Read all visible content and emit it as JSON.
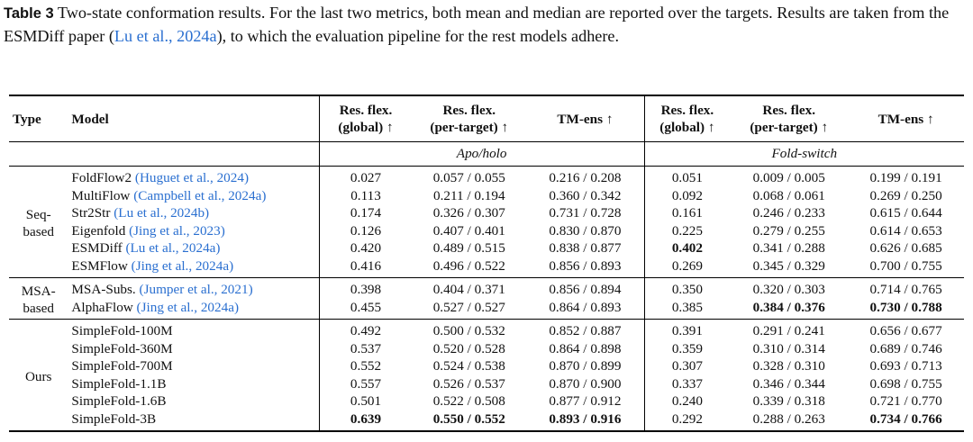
{
  "caption": {
    "label": "Table 3",
    "text_1": " Two-state conformation results. For the last two metrics, both mean and median are reported over the targets. Results are taken from the ESMDiff paper (",
    "cite_author": "Lu et al.",
    "cite_sep": ", ",
    "cite_year": "2024a",
    "text_2": "), to which the evaluation pipeline for the rest models adhere."
  },
  "headers": {
    "type": "Type",
    "model": "Model",
    "global_1": "Res. flex.",
    "global_2": "(global) ↑",
    "pert_1": "Res. flex.",
    "pert_2": "(per-target) ↑",
    "tm": "TM-ens ↑",
    "group_a": "Apo/holo",
    "group_b": "Fold-switch"
  },
  "groups": [
    {
      "type_1": "Seq-",
      "type_2": "based",
      "rows": [
        {
          "name": "FoldFlow2 ",
          "cite": "(Huguet et al., 2024)",
          "a_g": "0.027",
          "a_p": "0.057 / 0.055",
          "a_t": "0.216 / 0.208",
          "b_g": "0.051",
          "b_p": "0.009 / 0.005",
          "b_t": "0.199 / 0.191"
        },
        {
          "name": "MultiFlow ",
          "cite": "(Campbell et al., 2024a)",
          "a_g": "0.113",
          "a_p": "0.211 / 0.194",
          "a_t": "0.360 / 0.342",
          "b_g": "0.092",
          "b_p": "0.068 / 0.061",
          "b_t": "0.269 / 0.250"
        },
        {
          "name": "Str2Str ",
          "cite": "(Lu et al., 2024b)",
          "a_g": "0.174",
          "a_p": "0.326 / 0.307",
          "a_t": "0.731 / 0.728",
          "b_g": "0.161",
          "b_p": "0.246 / 0.233",
          "b_t": "0.615 / 0.644"
        },
        {
          "name": "Eigenfold ",
          "cite": "(Jing et al., 2023)",
          "a_g": "0.126",
          "a_p": "0.407 / 0.401",
          "a_t": "0.830 / 0.870",
          "b_g": "0.225",
          "b_p": "0.279 / 0.255",
          "b_t": "0.614 / 0.653"
        },
        {
          "name": "ESMDiff ",
          "cite": "(Lu et al., 2024a)",
          "a_g": "0.420",
          "a_p": "0.489 / 0.515",
          "a_t": "0.838 / 0.877",
          "b_g": "0.402",
          "b_p": "0.341 / 0.288",
          "b_t": "0.626 / 0.685"
        },
        {
          "name": "ESMFlow ",
          "cite": "(Jing et al., 2024a)",
          "a_g": "0.416",
          "a_p": "0.496 / 0.522",
          "a_t": "0.856 / 0.893",
          "b_g": "0.269",
          "b_p": "0.345 / 0.329",
          "b_t": "0.700 / 0.755"
        }
      ]
    },
    {
      "type_1": "MSA-",
      "type_2": "based",
      "rows": [
        {
          "name": "MSA-Subs. ",
          "cite": "(Jumper et al., 2021)",
          "a_g": "0.398",
          "a_p": "0.404 / 0.371",
          "a_t": "0.856 / 0.894",
          "b_g": "0.350",
          "b_p": "0.320 / 0.303",
          "b_t": "0.714 / 0.765"
        },
        {
          "name": "AlphaFlow ",
          "cite": "(Jing et al., 2024a)",
          "a_g": "0.455",
          "a_p": "0.527 / 0.527",
          "a_t": "0.864 / 0.893",
          "b_g": "0.385",
          "b_p": "0.384 / 0.376",
          "b_t": "0.730 / 0.788"
        }
      ]
    },
    {
      "type_1": "Ours",
      "type_2": "",
      "rows": [
        {
          "name": "SimpleFold-100M",
          "cite": "",
          "a_g": "0.492",
          "a_p": "0.500 / 0.532",
          "a_t": "0.852 / 0.887",
          "b_g": "0.391",
          "b_p": "0.291 / 0.241",
          "b_t": "0.656 / 0.677"
        },
        {
          "name": "SimpleFold-360M",
          "cite": "",
          "a_g": "0.537",
          "a_p": "0.520 / 0.528",
          "a_t": "0.864 / 0.898",
          "b_g": "0.359",
          "b_p": "0.310 / 0.314",
          "b_t": "0.689 / 0.746"
        },
        {
          "name": "SimpleFold-700M",
          "cite": "",
          "a_g": "0.552",
          "a_p": "0.524 / 0.538",
          "a_t": "0.870 / 0.899",
          "b_g": "0.307",
          "b_p": "0.328 / 0.310",
          "b_t": "0.693 / 0.713"
        },
        {
          "name": "SimpleFold-1.1B",
          "cite": "",
          "a_g": "0.557",
          "a_p": "0.526 / 0.537",
          "a_t": "0.870 / 0.900",
          "b_g": "0.337",
          "b_p": "0.346 / 0.344",
          "b_t": "0.698 / 0.755"
        },
        {
          "name": "SimpleFold-1.6B",
          "cite": "",
          "a_g": "0.501",
          "a_p": "0.522 / 0.508",
          "a_t": "0.877 / 0.912",
          "b_g": "0.240",
          "b_p": "0.339 / 0.318",
          "b_t": "0.721 / 0.770"
        },
        {
          "name": "SimpleFold-3B",
          "cite": "",
          "a_g": "0.639",
          "a_p": "0.550 / 0.552",
          "a_t": "0.893 / 0.916",
          "b_g": "0.292",
          "b_p": "0.288 / 0.263",
          "b_t": "0.734 / 0.766"
        }
      ]
    }
  ]
}
